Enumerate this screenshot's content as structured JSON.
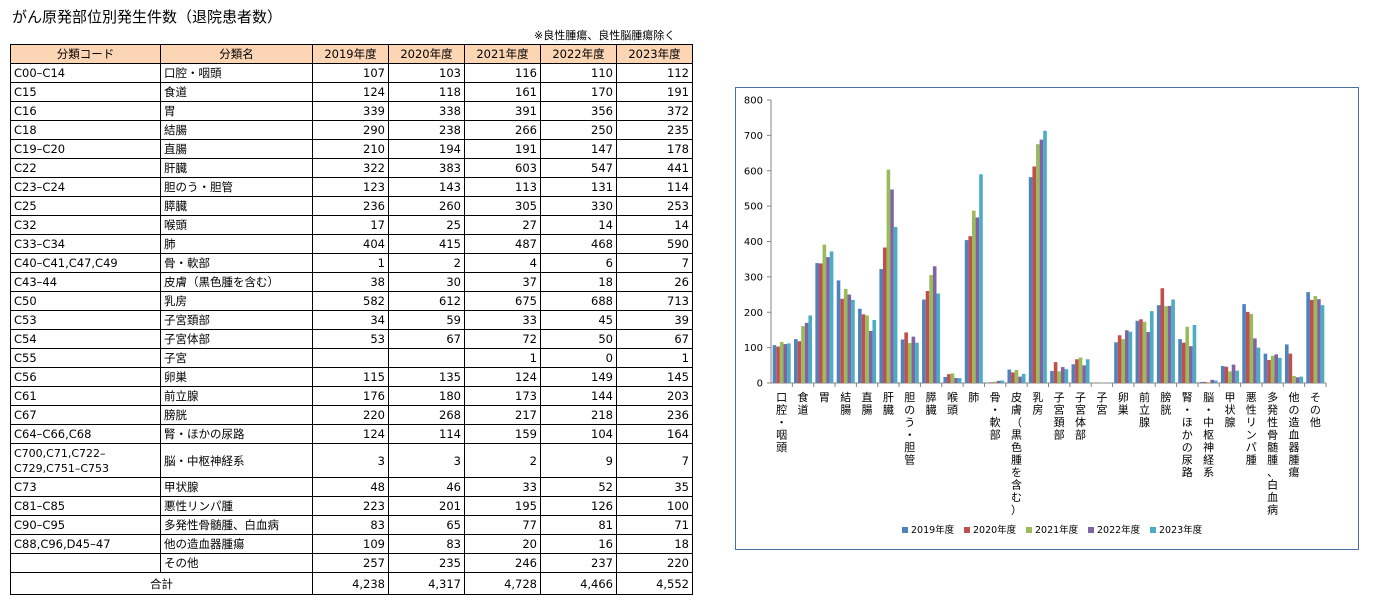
{
  "page": {
    "title": "がん原発部位別発生件数（退院患者数）",
    "note": "※良性腫瘍、良性脳腫瘍除く"
  },
  "table": {
    "headers": [
      "分類コード",
      "分類名",
      "2019年度",
      "2020年度",
      "2021年度",
      "2022年度",
      "2023年度"
    ],
    "rows": [
      {
        "code": "C00–C14",
        "name": "口腔・咽頭",
        "values": [
          "107",
          "103",
          "116",
          "110",
          "112"
        ]
      },
      {
        "code": "C15",
        "name": "食道",
        "values": [
          "124",
          "118",
          "161",
          "170",
          "191"
        ]
      },
      {
        "code": "C16",
        "name": "胃",
        "values": [
          "339",
          "338",
          "391",
          "356",
          "372"
        ]
      },
      {
        "code": "C18",
        "name": "結腸",
        "values": [
          "290",
          "238",
          "266",
          "250",
          "235"
        ]
      },
      {
        "code": "C19–C20",
        "name": "直腸",
        "values": [
          "210",
          "194",
          "191",
          "147",
          "178"
        ]
      },
      {
        "code": "C22",
        "name": "肝臓",
        "values": [
          "322",
          "383",
          "603",
          "547",
          "441"
        ]
      },
      {
        "code": "C23–C24",
        "name": "胆のう・胆管",
        "values": [
          "123",
          "143",
          "113",
          "131",
          "114"
        ]
      },
      {
        "code": "C25",
        "name": "膵臓",
        "values": [
          "236",
          "260",
          "305",
          "330",
          "253"
        ]
      },
      {
        "code": "C32",
        "name": "喉頭",
        "values": [
          "17",
          "25",
          "27",
          "14",
          "14"
        ]
      },
      {
        "code": "C33–C34",
        "name": "肺",
        "values": [
          "404",
          "415",
          "487",
          "468",
          "590"
        ]
      },
      {
        "code": "C40–C41,C47,C49",
        "name": "骨・軟部",
        "values": [
          "1",
          "2",
          "4",
          "6",
          "7"
        ]
      },
      {
        "code": "C43–44",
        "name": "皮膚（黒色腫を含む）",
        "values": [
          "38",
          "30",
          "37",
          "18",
          "26"
        ]
      },
      {
        "code": "C50",
        "name": "乳房",
        "values": [
          "582",
          "612",
          "675",
          "688",
          "713"
        ]
      },
      {
        "code": "C53",
        "name": "子宮頚部",
        "values": [
          "34",
          "59",
          "33",
          "45",
          "39"
        ]
      },
      {
        "code": "C54",
        "name": "子宮体部",
        "values": [
          "53",
          "67",
          "72",
          "50",
          "67"
        ]
      },
      {
        "code": "C55",
        "name": "子宮",
        "values": [
          "",
          "",
          "1",
          "0",
          "1"
        ]
      },
      {
        "code": "C56",
        "name": "卵巣",
        "values": [
          "115",
          "135",
          "124",
          "149",
          "145"
        ]
      },
      {
        "code": "C61",
        "name": "前立腺",
        "values": [
          "176",
          "180",
          "173",
          "144",
          "203"
        ]
      },
      {
        "code": "C67",
        "name": "膀胱",
        "values": [
          "220",
          "268",
          "217",
          "218",
          "236"
        ]
      },
      {
        "code": "C64–C66,C68",
        "name": "腎・ほかの尿路",
        "values": [
          "124",
          "114",
          "159",
          "104",
          "164"
        ]
      },
      {
        "code": "C700,C71,C722–C729,C751–C753",
        "name": "脳・中枢神経系",
        "values": [
          "3",
          "3",
          "2",
          "9",
          "7"
        ]
      },
      {
        "code": "C73",
        "name": "甲状腺",
        "values": [
          "48",
          "46",
          "33",
          "52",
          "35"
        ]
      },
      {
        "code": "C81–C85",
        "name": "悪性リンパ腫",
        "values": [
          "223",
          "201",
          "195",
          "126",
          "100"
        ]
      },
      {
        "code": "C90–C95",
        "name": "多発性骨髄腫、白血病",
        "values": [
          "83",
          "65",
          "77",
          "81",
          "71"
        ]
      },
      {
        "code": "C88,C96,D45–47",
        "name": "他の造血器腫瘍",
        "values": [
          "109",
          "83",
          "20",
          "16",
          "18"
        ]
      },
      {
        "code": "",
        "name": "その他",
        "values": [
          "257",
          "235",
          "246",
          "237",
          "220"
        ]
      }
    ],
    "total": {
      "label": "合計",
      "values": [
        "4,238",
        "4,317",
        "4,728",
        "4,466",
        "4,552"
      ]
    }
  },
  "chart_data": {
    "type": "bar",
    "title": "",
    "xlabel": "",
    "ylabel": "",
    "ylim": [
      0,
      800
    ],
    "yticks": [
      "0",
      "100",
      "200",
      "300",
      "400",
      "500",
      "600",
      "700",
      "800"
    ],
    "grid": false,
    "legend": "bottom",
    "categories": [
      "口腔・咽頭",
      "食道",
      "胃",
      "結腸",
      "直腸",
      "肝臓",
      "胆のう・胆管",
      "膵臓",
      "喉頭",
      "肺",
      "骨・軟部",
      "皮膚（黒色腫を含む）",
      "乳房",
      "子宮頚部",
      "子宮体部",
      "子宮",
      "卵巣",
      "前立腺",
      "膀胱",
      "腎・ほかの尿路",
      "脳・中枢神経系",
      "甲状腺",
      "悪性リンパ腫",
      "多発性骨髄腫、白血病",
      "他の造血器腫瘍",
      "その他"
    ],
    "series": [
      {
        "name": "2019年度",
        "color": "#4f81bd",
        "values": [
          107,
          124,
          339,
          290,
          210,
          322,
          123,
          236,
          17,
          404,
          1,
          38,
          582,
          34,
          53,
          0,
          115,
          176,
          220,
          124,
          3,
          48,
          223,
          83,
          109,
          257
        ]
      },
      {
        "name": "2020年度",
        "color": "#c0504d",
        "values": [
          103,
          118,
          338,
          238,
          194,
          383,
          143,
          260,
          25,
          415,
          2,
          30,
          612,
          59,
          67,
          0,
          135,
          180,
          268,
          114,
          3,
          46,
          201,
          65,
          83,
          235
        ]
      },
      {
        "name": "2021年度",
        "color": "#9bbb59",
        "values": [
          116,
          161,
          391,
          266,
          191,
          603,
          113,
          305,
          27,
          487,
          4,
          37,
          675,
          33,
          72,
          1,
          124,
          173,
          217,
          159,
          2,
          33,
          195,
          77,
          20,
          246
        ]
      },
      {
        "name": "2022年度",
        "color": "#8064a2",
        "values": [
          110,
          170,
          356,
          250,
          147,
          547,
          131,
          330,
          14,
          468,
          6,
          18,
          688,
          45,
          50,
          0,
          149,
          144,
          218,
          104,
          9,
          52,
          126,
          81,
          16,
          237
        ]
      },
      {
        "name": "2023年度",
        "color": "#4bacc6",
        "values": [
          112,
          191,
          372,
          235,
          178,
          441,
          114,
          253,
          14,
          590,
          7,
          26,
          713,
          39,
          67,
          1,
          145,
          203,
          236,
          164,
          7,
          35,
          100,
          71,
          18,
          220
        ]
      }
    ]
  }
}
